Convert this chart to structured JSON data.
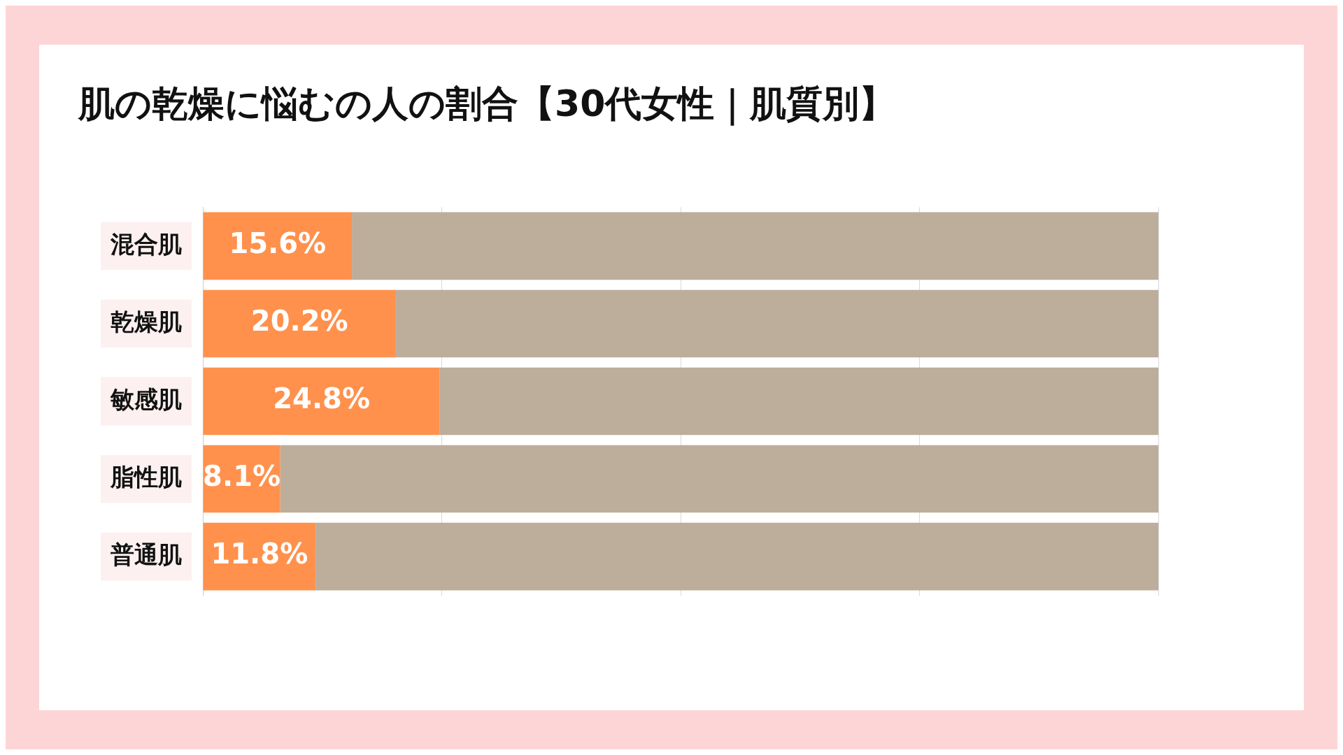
{
  "chart_data": {
    "type": "bar",
    "title": "肌の乾燥に悩むの人の割合【30代女性｜肌質別】",
    "orientation": "horizontal",
    "stacked": true,
    "categories": [
      "混合肌",
      "乾燥肌",
      "敏感肌",
      "脂性肌",
      "普通肌"
    ],
    "series": [
      {
        "color": "#ff914d",
        "values": [
          15.6,
          20.2,
          24.8,
          8.1,
          11.8
        ],
        "value_labels": [
          "15.6%",
          "20.2%",
          "24.8%",
          "8.1%",
          "11.8%"
        ]
      },
      {
        "color": "#bdad9b",
        "values": [
          84.4,
          79.8,
          75.2,
          91.9,
          88.2
        ]
      }
    ],
    "xlim": [
      0,
      100
    ],
    "xticks": [
      {
        "value": 0,
        "label": null
      },
      {
        "value": 25,
        "label": null
      },
      {
        "value": 50,
        "label": null
      },
      {
        "value": 75,
        "label": null
      },
      {
        "value": 100,
        "label": null
      }
    ],
    "grid": "x",
    "tick_labels": "y",
    "legend": false
  }
}
